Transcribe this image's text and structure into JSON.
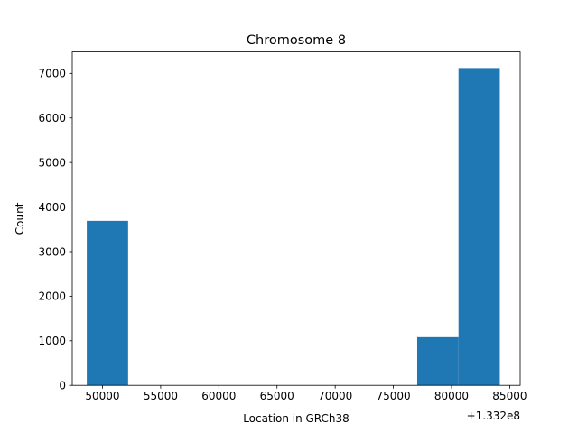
{
  "chart_data": {
    "type": "bar",
    "title": "Chromosome 8",
    "xlabel": "Location in GRCh38",
    "ylabel": "Count",
    "x_offset_label": "+1.332e8",
    "bar_color": "#1f77b4",
    "xlim": [
      47400,
      85900
    ],
    "ylim": [
      0,
      7480
    ],
    "x_ticks": [
      50000,
      55000,
      60000,
      65000,
      70000,
      75000,
      80000,
      85000
    ],
    "x_tick_labels": [
      "50000",
      "55000",
      "60000",
      "65000",
      "70000",
      "75000",
      "80000",
      "85000"
    ],
    "y_ticks": [
      0,
      1000,
      2000,
      3000,
      4000,
      5000,
      6000,
      7000
    ],
    "y_tick_labels": [
      "0",
      "1000",
      "2000",
      "3000",
      "4000",
      "5000",
      "6000",
      "7000"
    ],
    "bins": [
      {
        "start": 48650,
        "end": 52200,
        "count": 3690
      },
      {
        "start": 52200,
        "end": 55750,
        "count": 0
      },
      {
        "start": 55750,
        "end": 59300,
        "count": 0
      },
      {
        "start": 59300,
        "end": 62850,
        "count": 0
      },
      {
        "start": 62850,
        "end": 66400,
        "count": 0
      },
      {
        "start": 66400,
        "end": 69950,
        "count": 0
      },
      {
        "start": 69950,
        "end": 73500,
        "count": 0
      },
      {
        "start": 73500,
        "end": 77050,
        "count": 0
      },
      {
        "start": 77050,
        "end": 80600,
        "count": 1080
      },
      {
        "start": 80600,
        "end": 84150,
        "count": 7120
      }
    ]
  }
}
